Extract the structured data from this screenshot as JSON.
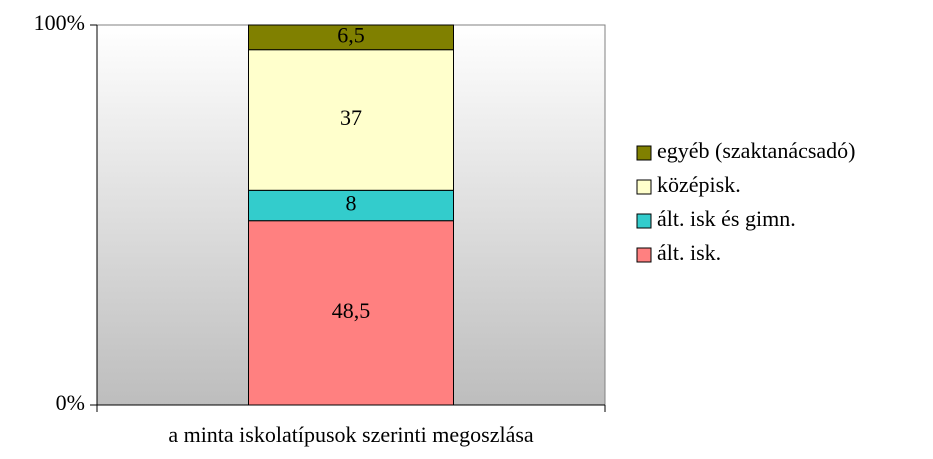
{
  "chart_data": {
    "type": "stacked_bar",
    "categories": [
      "a minta iskolatípusok szerinti megoszlása"
    ],
    "series": [
      {
        "name": "ált. isk.",
        "color": "#ff8080",
        "values": [
          48.5
        ],
        "value_labels": [
          "48,5"
        ]
      },
      {
        "name": "ált. isk és gimn.",
        "color": "#33cccc",
        "values": [
          8
        ]
      },
      {
        "name": "középisk.",
        "color": "#ffffcc",
        "values": [
          37
        ]
      },
      {
        "name": "egyéb (szaktanácsadó)",
        "color": "#808000",
        "values": [
          6.5
        ],
        "value_labels": [
          "6,5"
        ]
      }
    ],
    "ylim": [
      0,
      100
    ],
    "yticks": [
      {
        "value": 0,
        "label": "0%"
      },
      {
        "value": 100,
        "label": "100%"
      }
    ],
    "legend": "right"
  }
}
